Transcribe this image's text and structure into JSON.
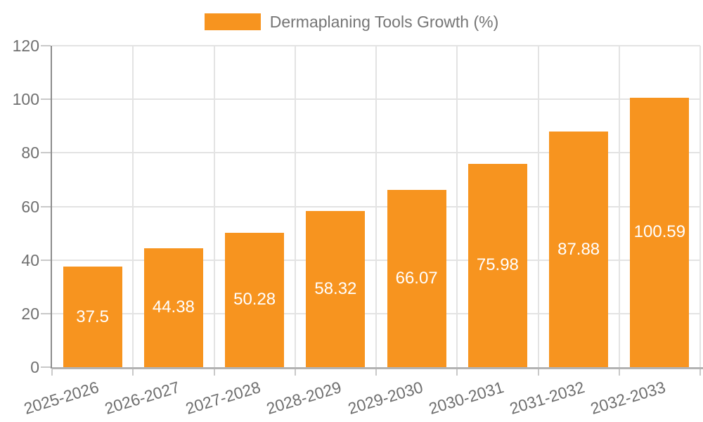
{
  "chart_data": {
    "type": "bar",
    "title": "",
    "legend": {
      "label": "Dermaplaning Tools Growth (%)",
      "position": "top-center"
    },
    "categories": [
      "2025-2026",
      "2026-2027",
      "2027-2028",
      "2028-2029",
      "2029-2030",
      "2030-2031",
      "2031-2032",
      "2032-2033"
    ],
    "values": [
      37.5,
      44.38,
      50.28,
      58.32,
      66.07,
      75.98,
      87.88,
      100.59
    ],
    "value_labels": [
      "37.5",
      "44.38",
      "50.28",
      "58.32",
      "66.07",
      "75.98",
      "87.88",
      "100.59"
    ],
    "xlabel": "",
    "ylabel": "",
    "ylim": [
      0,
      120
    ],
    "yticks": [
      0,
      20,
      40,
      60,
      80,
      100,
      120
    ],
    "grid": true,
    "value_label_position": "inside-center",
    "colors": {
      "bar": "#f7941f",
      "bar_value_text": "#ffffff",
      "grid": "#e3e3e3",
      "y_axis_line": "#8c8c8c",
      "x_axis_line": "#b3b3b3",
      "tick": "#c9c9c9",
      "tick_label_text": "#6f6f6f",
      "legend_text": "#757575",
      "background": "#ffffff"
    }
  }
}
